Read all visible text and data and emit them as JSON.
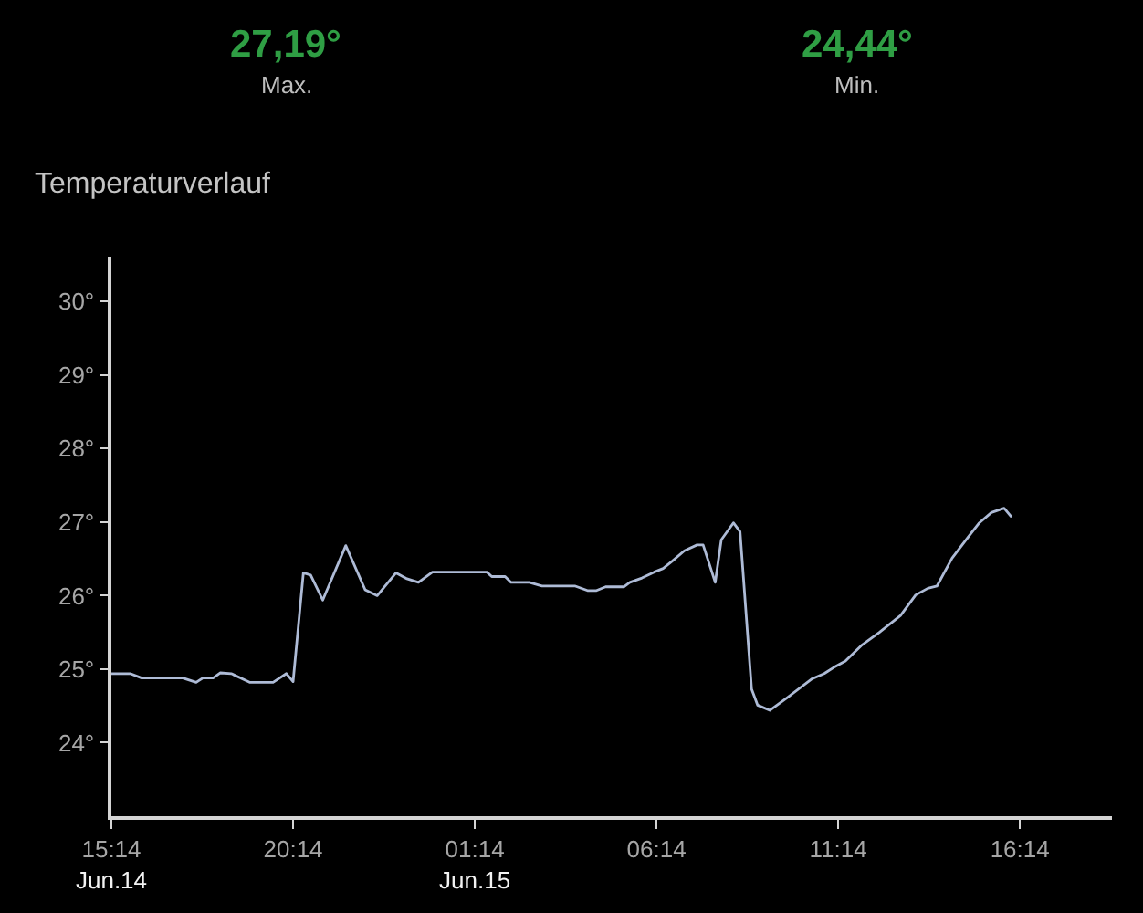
{
  "chart_data": {
    "type": "line",
    "title": "Temperaturverlauf",
    "annotations": [
      "27,19°",
      "Max.",
      "24,44°",
      "Min."
    ],
    "x": [
      "--06-14T15:14",
      "--06-14T15:45",
      "--06-14T16:04",
      "--06-14T17:12",
      "--06-14T17:34",
      "--06-14T17:45",
      "--06-14T18:02",
      "--06-14T18:14",
      "--06-14T18:32",
      "--06-14T19:03",
      "--06-14T19:41",
      "--06-14T20:03",
      "--06-14T20:14",
      "--06-14T20:31",
      "--06-14T20:43",
      "--06-14T21:03",
      "--06-14T21:41",
      "--06-14T22:13",
      "--06-14T22:33",
      "--06-14T23:04",
      "--06-14T23:22",
      "--06-14T23:41",
      "--06-15T00:04",
      "--06-15T01:34",
      "--06-15T01:42",
      "--06-15T02:04",
      "--06-15T02:14",
      "--06-15T02:44",
      "--06-15T03:05",
      "--06-15T04:00",
      "--06-15T04:20",
      "--06-15T04:35",
      "--06-15T04:50",
      "--06-15T05:20",
      "--06-15T05:30",
      "--06-15T05:50",
      "--06-15T06:10",
      "--06-15T06:25",
      "--06-15T06:40",
      "--06-15T07:00",
      "--06-15T07:21",
      "--06-15T07:31",
      "--06-15T07:51",
      "--06-15T08:01",
      "--06-15T08:21",
      "--06-15T08:32",
      "--06-15T08:51",
      "--06-15T09:01",
      "--06-15T09:21",
      "--06-15T09:51",
      "--06-15T10:31",
      "--06-15T10:51",
      "--06-15T11:06",
      "--06-15T11:26",
      "--06-15T11:52",
      "--06-15T12:22",
      "--06-15T12:57",
      "--06-15T13:22",
      "--06-15T13:42",
      "--06-15T13:57",
      "--06-15T14:22",
      "--06-15T14:47",
      "--06-15T15:07",
      "--06-15T15:27",
      "--06-15T15:48",
      "--06-15T15:59"
    ],
    "series": [
      {
        "color": "#aebbd6",
        "values": [
          24.94,
          24.94,
          24.88,
          24.88,
          24.82,
          24.88,
          24.88,
          24.95,
          24.94,
          24.82,
          24.82,
          24.94,
          24.83,
          26.31,
          26.28,
          25.94,
          26.68,
          26.08,
          26.0,
          26.31,
          26.23,
          26.18,
          26.32,
          26.32,
          26.26,
          26.26,
          26.18,
          26.18,
          26.13,
          26.13,
          26.07,
          26.07,
          26.12,
          26.12,
          26.18,
          26.24,
          26.32,
          26.37,
          26.47,
          26.61,
          26.69,
          26.69,
          26.18,
          26.76,
          26.99,
          26.87,
          24.73,
          24.51,
          24.44,
          24.62,
          24.87,
          24.94,
          25.02,
          25.11,
          25.32,
          25.5,
          25.73,
          26.01,
          26.1,
          26.13,
          26.51,
          26.78,
          26.99,
          27.13,
          27.19,
          27.08
        ]
      }
    ],
    "xlim": [
      "--06-14T15:14",
      "--06-15T18:46"
    ],
    "ylim": [
      23,
      30.6
    ],
    "xticks": [
      {
        "value": "--06-14T15:14",
        "label": "15:14\nJun.14"
      },
      {
        "value": "--06-14T20:14",
        "label": "20:14"
      },
      {
        "value": "--06-15T01:14",
        "label": "01:14\nJun.15"
      },
      {
        "value": "--06-15T06:14",
        "label": "06:14"
      },
      {
        "value": "--06-15T11:14",
        "label": "11:14"
      },
      {
        "value": "--06-15T16:14",
        "label": "16:14"
      }
    ],
    "yticks": [
      {
        "value": 24,
        "label": "24°"
      },
      {
        "value": 25,
        "label": "25°"
      },
      {
        "value": 26,
        "label": "26°"
      },
      {
        "value": 27,
        "label": "27°"
      },
      {
        "value": 28,
        "label": "28°"
      },
      {
        "value": 29,
        "label": "29°"
      },
      {
        "value": 30,
        "label": "30°"
      }
    ],
    "line_style": "solid"
  }
}
